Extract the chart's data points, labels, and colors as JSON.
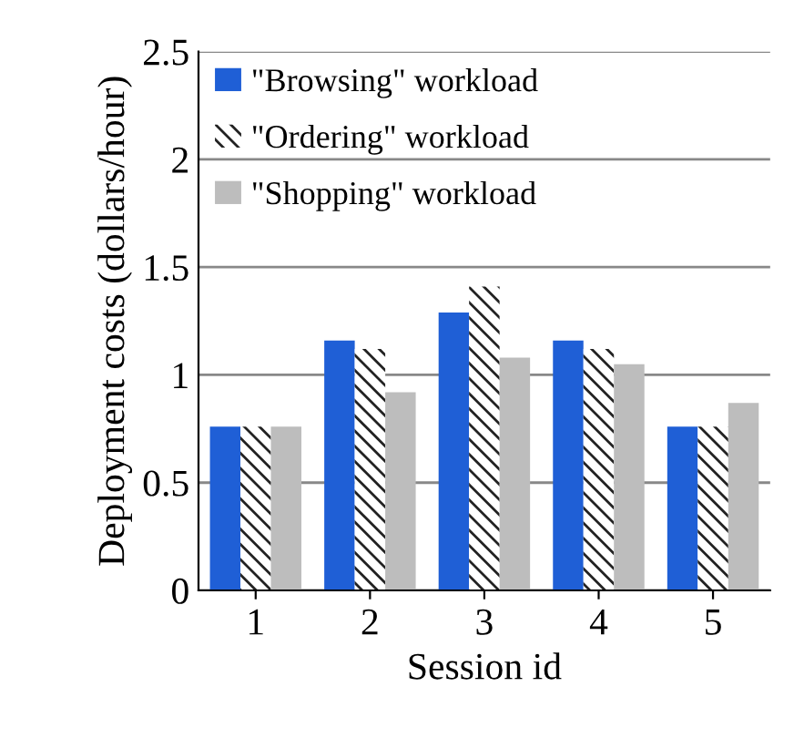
{
  "chart_data": {
    "type": "bar",
    "xlabel": "Session id",
    "ylabel": "Deployment costs (dollars/hour)",
    "categories": [
      "1",
      "2",
      "3",
      "4",
      "5"
    ],
    "series": [
      {
        "name": "\"Browsing\" workload",
        "color": "#1f5fd6",
        "values": [
          0.76,
          1.16,
          1.29,
          1.16,
          0.76
        ]
      },
      {
        "name": "\"Ordering\" workload",
        "color": "#222222",
        "values": [
          0.76,
          1.12,
          1.41,
          1.12,
          0.76
        ]
      },
      {
        "name": "\"Shopping\" workload",
        "color": "#bdbdbd",
        "values": [
          0.76,
          0.92,
          1.08,
          1.05,
          0.87
        ]
      }
    ],
    "ylim": [
      0,
      2.5
    ],
    "yticks": [
      0,
      0.5,
      1,
      1.5,
      2,
      2.5
    ],
    "grid": "y",
    "legend": "top left"
  }
}
